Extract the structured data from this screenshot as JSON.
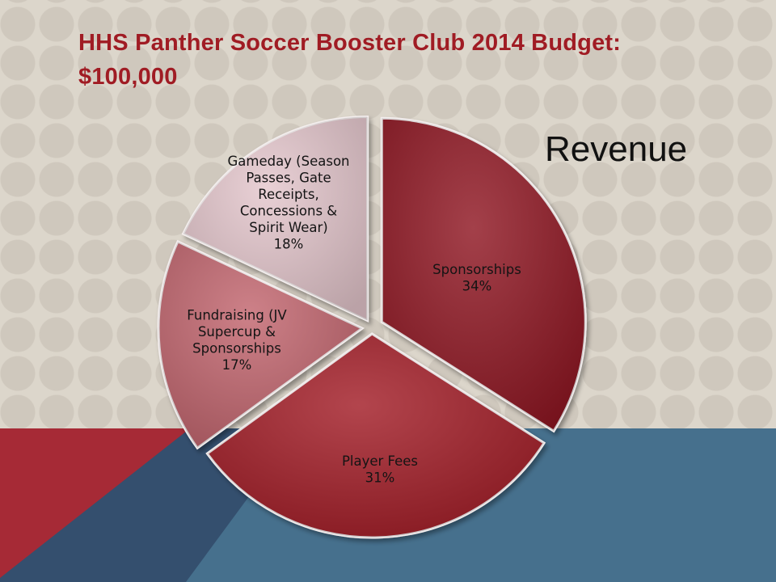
{
  "slide": {
    "title": "HHS Panther Soccer Booster Club 2014 Budget: $100,000"
  },
  "chart_data": {
    "type": "pie",
    "title": "Revenue",
    "slices": [
      {
        "label": "Sponsorships",
        "value": 34,
        "percent_label": "34%",
        "color": "#8f1520",
        "label_lines": [
          "Sponsorships",
          "34%"
        ]
      },
      {
        "label": "Player Fees",
        "value": 31,
        "percent_label": "31%",
        "color": "#a21a28",
        "label_lines": [
          "Player Fees",
          "31%"
        ]
      },
      {
        "label": "Fundraising (JV Supercup & Sponsorships",
        "value": 17,
        "percent_label": "17%",
        "color": "#c2656e",
        "label_lines": [
          "Fundraising (JV",
          "Supercup &",
          "Sponsorships",
          "17%"
        ]
      },
      {
        "label": "Gameday (Season Passes, Gate Receipts, Concessions & Spirit Wear)",
        "value": 18,
        "percent_label": "18%",
        "color": "#e4c6cc",
        "label_lines": [
          "Gameday (Season",
          "Passes, Gate",
          "Receipts,",
          "Concessions &",
          "Spirit Wear)",
          "18%"
        ]
      }
    ],
    "legend": "none"
  }
}
